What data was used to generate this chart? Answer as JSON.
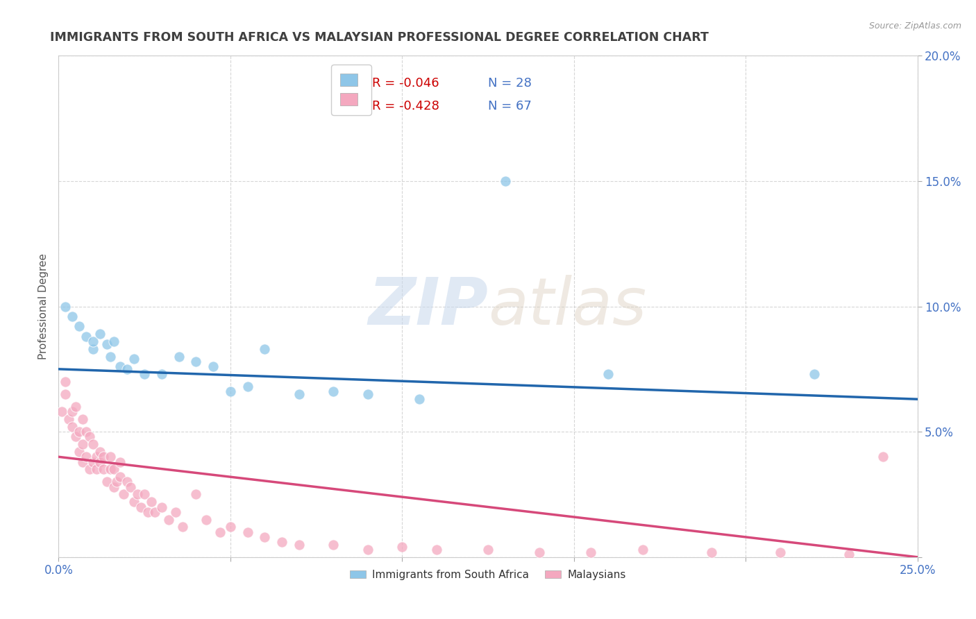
{
  "title": "IMMIGRANTS FROM SOUTH AFRICA VS MALAYSIAN PROFESSIONAL DEGREE CORRELATION CHART",
  "source": "Source: ZipAtlas.com",
  "xlabel": "",
  "ylabel": "Professional Degree",
  "xlim": [
    0.0,
    0.25
  ],
  "ylim": [
    0.0,
    0.2
  ],
  "xticks": [
    0.0,
    0.05,
    0.1,
    0.15,
    0.2,
    0.25
  ],
  "yticks": [
    0.0,
    0.05,
    0.1,
    0.15,
    0.2
  ],
  "xticklabels": [
    "0.0%",
    "",
    "",
    "",
    "",
    "25.0%"
  ],
  "yticklabels": [
    "",
    "5.0%",
    "10.0%",
    "15.0%",
    "20.0%"
  ],
  "legend1_r": "R = -0.046",
  "legend1_n": "N = 28",
  "legend2_r": "R = -0.428",
  "legend2_n": "N = 67",
  "legend_bottom_label1": "Immigrants from South Africa",
  "legend_bottom_label2": "Malaysians",
  "color_blue": "#8ec6e8",
  "color_pink": "#f4a8bf",
  "color_blue_dark": "#2166ac",
  "color_pink_dark": "#d6497a",
  "watermark_zip": "ZIP",
  "watermark_atlas": "atlas",
  "sa_scatter_x": [
    0.002,
    0.004,
    0.006,
    0.008,
    0.01,
    0.01,
    0.012,
    0.014,
    0.015,
    0.016,
    0.018,
    0.02,
    0.022,
    0.025,
    0.03,
    0.035,
    0.04,
    0.045,
    0.05,
    0.055,
    0.06,
    0.07,
    0.08,
    0.09,
    0.105,
    0.13,
    0.16,
    0.22
  ],
  "sa_scatter_y": [
    0.1,
    0.096,
    0.092,
    0.088,
    0.083,
    0.086,
    0.089,
    0.085,
    0.08,
    0.086,
    0.076,
    0.075,
    0.079,
    0.073,
    0.073,
    0.08,
    0.078,
    0.076,
    0.066,
    0.068,
    0.083,
    0.065,
    0.066,
    0.065,
    0.063,
    0.15,
    0.073,
    0.073
  ],
  "ma_scatter_x": [
    0.001,
    0.002,
    0.002,
    0.003,
    0.004,
    0.004,
    0.005,
    0.005,
    0.006,
    0.006,
    0.007,
    0.007,
    0.007,
    0.008,
    0.008,
    0.009,
    0.009,
    0.01,
    0.01,
    0.011,
    0.011,
    0.012,
    0.012,
    0.013,
    0.013,
    0.014,
    0.015,
    0.015,
    0.016,
    0.016,
    0.017,
    0.018,
    0.018,
    0.019,
    0.02,
    0.021,
    0.022,
    0.023,
    0.024,
    0.025,
    0.026,
    0.027,
    0.028,
    0.03,
    0.032,
    0.034,
    0.036,
    0.04,
    0.043,
    0.047,
    0.05,
    0.055,
    0.06,
    0.065,
    0.07,
    0.08,
    0.09,
    0.1,
    0.11,
    0.125,
    0.14,
    0.155,
    0.17,
    0.19,
    0.21,
    0.23,
    0.24
  ],
  "ma_scatter_y": [
    0.058,
    0.065,
    0.07,
    0.055,
    0.058,
    0.052,
    0.048,
    0.06,
    0.042,
    0.05,
    0.038,
    0.045,
    0.055,
    0.04,
    0.05,
    0.035,
    0.048,
    0.038,
    0.045,
    0.04,
    0.035,
    0.038,
    0.042,
    0.035,
    0.04,
    0.03,
    0.035,
    0.04,
    0.028,
    0.035,
    0.03,
    0.032,
    0.038,
    0.025,
    0.03,
    0.028,
    0.022,
    0.025,
    0.02,
    0.025,
    0.018,
    0.022,
    0.018,
    0.02,
    0.015,
    0.018,
    0.012,
    0.025,
    0.015,
    0.01,
    0.012,
    0.01,
    0.008,
    0.006,
    0.005,
    0.005,
    0.003,
    0.004,
    0.003,
    0.003,
    0.002,
    0.002,
    0.003,
    0.002,
    0.002,
    0.001,
    0.04
  ],
  "sa_line_x": [
    0.0,
    0.25
  ],
  "sa_line_y": [
    0.075,
    0.063
  ],
  "ma_line_x": [
    0.0,
    0.25
  ],
  "ma_line_y": [
    0.04,
    0.0
  ],
  "grid_color": "#cccccc",
  "bg_color": "#ffffff",
  "tick_color": "#4472c4",
  "title_color": "#404040",
  "r_color": "#cc0000",
  "n_color": "#4472c4"
}
